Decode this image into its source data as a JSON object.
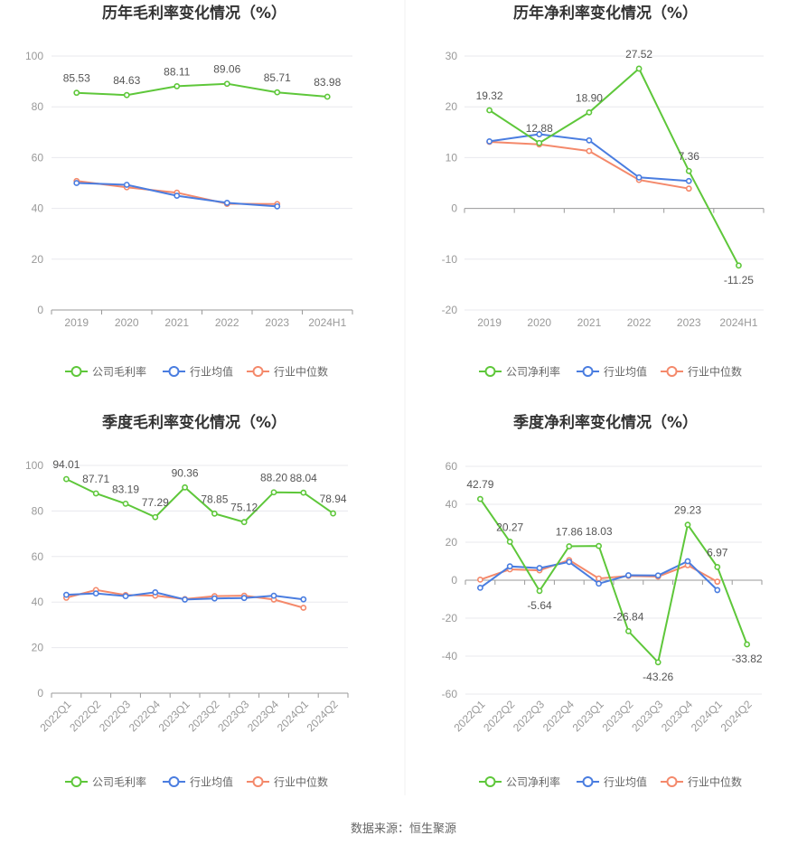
{
  "chart_data": [
    {
      "type": "line",
      "title": "历年毛利率变化情况（%）",
      "categories": [
        "2019",
        "2020",
        "2021",
        "2022",
        "2023",
        "2024H1"
      ],
      "ylim": [
        0,
        100
      ],
      "yticks": [
        0,
        20,
        40,
        60,
        80,
        100
      ],
      "series": [
        {
          "name": "公司毛利率",
          "color": "#5ec73a",
          "values": [
            85.53,
            84.63,
            88.11,
            89.06,
            85.71,
            83.98
          ],
          "labels": [
            "85.53",
            "84.63",
            "88.11",
            "89.06",
            "85.71",
            "83.98"
          ]
        },
        {
          "name": "行业均值",
          "color": "#4a7de0",
          "values": [
            50.0,
            49.3,
            45.0,
            42.2,
            40.8,
            null
          ]
        },
        {
          "name": "行业中位数",
          "color": "#f4896b",
          "values": [
            50.8,
            48.3,
            46.2,
            41.8,
            41.7,
            null
          ]
        }
      ]
    },
    {
      "type": "line",
      "title": "历年净利率变化情况（%）",
      "categories": [
        "2019",
        "2020",
        "2021",
        "2022",
        "2023",
        "2024H1"
      ],
      "ylim": [
        -20,
        30
      ],
      "yticks": [
        -20,
        -10,
        0,
        10,
        20,
        30
      ],
      "series": [
        {
          "name": "公司净利率",
          "color": "#5ec73a",
          "values": [
            19.32,
            12.88,
            18.9,
            27.52,
            7.36,
            -11.25
          ],
          "labels": [
            "19.32",
            "12.88",
            "18.90",
            "27.52",
            "7.36",
            "-11.25"
          ]
        },
        {
          "name": "行业均值",
          "color": "#4a7de0",
          "values": [
            13.2,
            14.6,
            13.4,
            6.1,
            5.4,
            null
          ]
        },
        {
          "name": "行业中位数",
          "color": "#f4896b",
          "values": [
            13.1,
            12.6,
            11.3,
            5.6,
            3.9,
            null
          ]
        }
      ]
    },
    {
      "type": "line",
      "title": "季度毛利率变化情况（%）",
      "categories": [
        "2022Q1",
        "2022Q2",
        "2022Q3",
        "2022Q4",
        "2023Q1",
        "2023Q2",
        "2023Q3",
        "2023Q4",
        "2024Q1",
        "2024Q2"
      ],
      "ylim": [
        0,
        100
      ],
      "yticks": [
        0,
        20,
        40,
        60,
        80,
        100
      ],
      "series": [
        {
          "name": "公司毛利率",
          "color": "#5ec73a",
          "values": [
            94.01,
            87.71,
            83.19,
            77.29,
            90.36,
            78.85,
            75.12,
            88.2,
            88.04,
            78.94
          ],
          "labels": [
            "94.01",
            "87.71",
            "83.19",
            "77.29",
            "90.36",
            "78.85",
            "75.12",
            "88.20",
            "88.04",
            "78.94"
          ]
        },
        {
          "name": "行业均值",
          "color": "#4a7de0",
          "values": [
            43.2,
            43.8,
            42.6,
            44.3,
            41.1,
            41.6,
            41.8,
            42.8,
            41.2,
            null
          ]
        },
        {
          "name": "行业中位数",
          "color": "#f4896b",
          "values": [
            41.9,
            45.3,
            43.1,
            42.8,
            41.3,
            42.6,
            42.8,
            41.1,
            37.5,
            null
          ]
        }
      ]
    },
    {
      "type": "line",
      "title": "季度净利率变化情况（%）",
      "categories": [
        "2022Q1",
        "2022Q2",
        "2022Q3",
        "2022Q4",
        "2023Q1",
        "2023Q2",
        "2023Q3",
        "2023Q4",
        "2024Q1",
        "2024Q2"
      ],
      "ylim": [
        -60,
        60
      ],
      "yticks": [
        -60,
        -40,
        -20,
        0,
        20,
        40,
        60
      ],
      "series": [
        {
          "name": "公司净利率",
          "color": "#5ec73a",
          "values": [
            42.79,
            20.27,
            -5.64,
            17.86,
            18.03,
            -26.84,
            -43.26,
            29.23,
            6.97,
            -33.82
          ],
          "labels": [
            "42.79",
            "20.27",
            "-5.64",
            "17.86",
            "18.03",
            "-26.84",
            "-43.26",
            "29.23",
            "6.97",
            "-33.82"
          ]
        },
        {
          "name": "行业均值",
          "color": "#4a7de0",
          "values": [
            -4.0,
            7.3,
            6.4,
            9.6,
            -1.8,
            2.6,
            2.5,
            10.0,
            -5.2,
            null
          ]
        },
        {
          "name": "行业中位数",
          "color": "#f4896b",
          "values": [
            0.3,
            5.7,
            5.2,
            10.6,
            0.9,
            2.3,
            1.9,
            7.9,
            -0.8,
            null
          ]
        }
      ]
    }
  ],
  "footer": {
    "source": "数据来源：恒生聚源"
  }
}
